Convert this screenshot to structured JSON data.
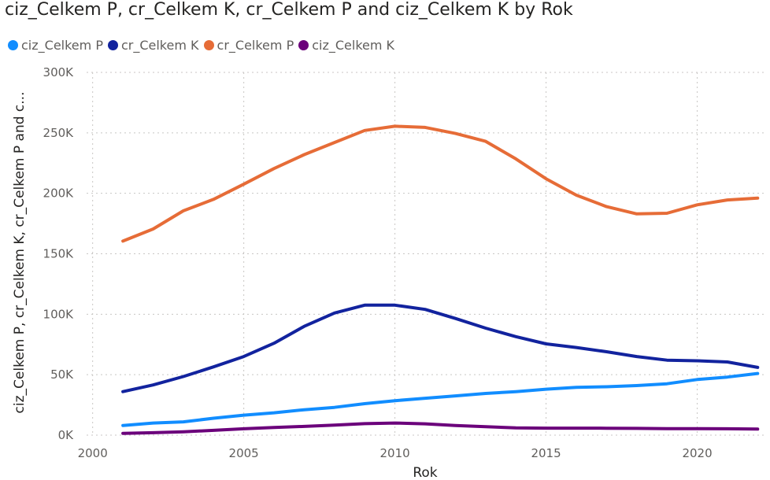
{
  "chart_data": {
    "type": "line",
    "title": "ciz_Celkem P, cr_Celkem K, cr_Celkem P and ciz_Celkem K by Rok",
    "xlabel": "Rok",
    "ylabel": "ciz_Celkem P, cr_Celkem K, cr_Celkem P and c...",
    "xlim": [
      1999.8,
      2022.2
    ],
    "ylim": [
      0,
      300000
    ],
    "x_ticks": [
      2000,
      2005,
      2010,
      2015,
      2020
    ],
    "x_tick_labels": [
      "2000",
      "2005",
      "2010",
      "2015",
      "2020"
    ],
    "y_ticks": [
      0,
      50000,
      100000,
      150000,
      200000,
      250000,
      300000
    ],
    "y_tick_labels": [
      "0K",
      "50K",
      "100K",
      "150K",
      "200K",
      "250K",
      "300K"
    ],
    "grid": true,
    "legend_position": "top-left",
    "x": [
      2001,
      2002,
      2003,
      2004,
      2005,
      2006,
      2007,
      2008,
      2009,
      2010,
      2011,
      2012,
      2013,
      2014,
      2015,
      2016,
      2017,
      2018,
      2019,
      2020,
      2021,
      2022
    ],
    "series": [
      {
        "name": "ciz_Celkem P",
        "color": "#118DFF",
        "values": [
          8000,
          10000,
          11000,
          14000,
          16500,
          18500,
          21000,
          23000,
          26000,
          28500,
          30500,
          32500,
          34500,
          36000,
          38000,
          39500,
          40000,
          41000,
          42500,
          46000,
          48000,
          51000
        ]
      },
      {
        "name": "cr_Celkem K",
        "color": "#12239E",
        "values": [
          36000,
          41500,
          48500,
          56500,
          65000,
          76000,
          90000,
          101000,
          107500,
          107500,
          104000,
          96500,
          88500,
          81500,
          75500,
          72500,
          69000,
          65000,
          62000,
          61500,
          60500,
          56000
        ]
      },
      {
        "name": "cr_Celkem P",
        "color": "#E66C37",
        "values": [
          160500,
          170500,
          185500,
          195000,
          207500,
          220500,
          232000,
          242000,
          252000,
          255500,
          254500,
          249500,
          243000,
          228500,
          212000,
          198500,
          189000,
          183000,
          183500,
          190500,
          194500,
          196000
        ]
      },
      {
        "name": "ciz_Celkem K",
        "color": "#6B007B",
        "values": [
          1500,
          2000,
          2800,
          4000,
          5300,
          6300,
          7200,
          8300,
          9500,
          10000,
          9400,
          8000,
          7000,
          6000,
          5800,
          5800,
          5700,
          5600,
          5400,
          5400,
          5300,
          5000
        ]
      }
    ]
  }
}
